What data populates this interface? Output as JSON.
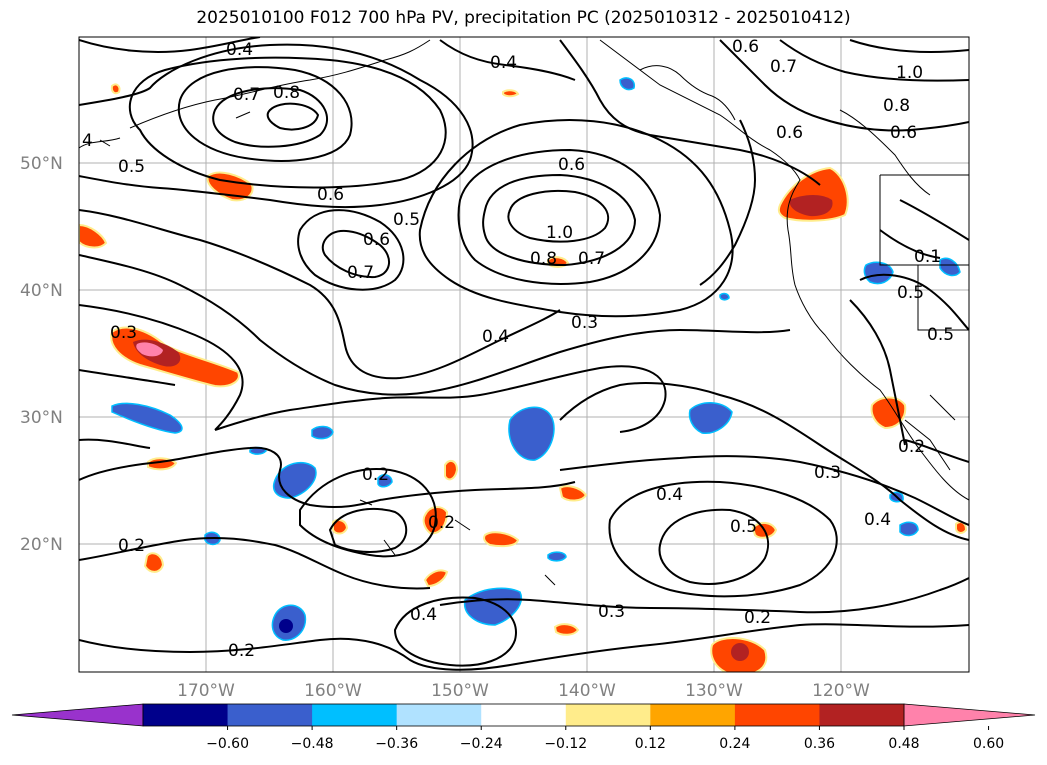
{
  "title": "2025010100 F012 700 hPa PV, precipitation PC (2025010312 - 2025010412)",
  "chart_data": {
    "type": "map",
    "projection": "plate carree, North Pacific",
    "lat_labels": [
      "50°N",
      "40°N",
      "30°N",
      "20°N"
    ],
    "lon_labels": [
      "170°W",
      "160°W",
      "150°W",
      "140°W",
      "130°W",
      "120°W"
    ],
    "grid": true,
    "contour_field": "700 hPa PV",
    "contour_labels": [
      "0.4",
      "0.4",
      "0.6",
      "0.7",
      "0.8",
      "4",
      "0.5",
      "0.6",
      "0.5",
      "0.6",
      "0.7",
      "1.0",
      "0.8",
      "0.7",
      "0.6",
      "0.4",
      "0.3",
      "0.3",
      "0.2",
      "0.2",
      "0.2",
      "0.4",
      "0.3",
      "0.2",
      "0.2",
      "0.4",
      "0.5",
      "0.3",
      "0.4",
      "0.6",
      "0.7",
      "1.0",
      "0.8",
      "0.6",
      "0.1",
      "0.5",
      "0.5",
      "0.2"
    ],
    "shading_field": "precipitation PC",
    "colorbar": {
      "extend": "both",
      "ticks": [
        "−0.60",
        "−0.48",
        "−0.36",
        "−0.24",
        "−0.12",
        "0.12",
        "0.24",
        "0.36",
        "0.48",
        "0.60"
      ],
      "colors": [
        "#9932cc",
        "#00008b",
        "#3a5fcd",
        "#00bfff",
        "#b0e2ff",
        "#ffffff",
        "#ffec8b",
        "#ffa500",
        "#ff4500",
        "#b22222",
        "#ff82ab"
      ]
    }
  }
}
